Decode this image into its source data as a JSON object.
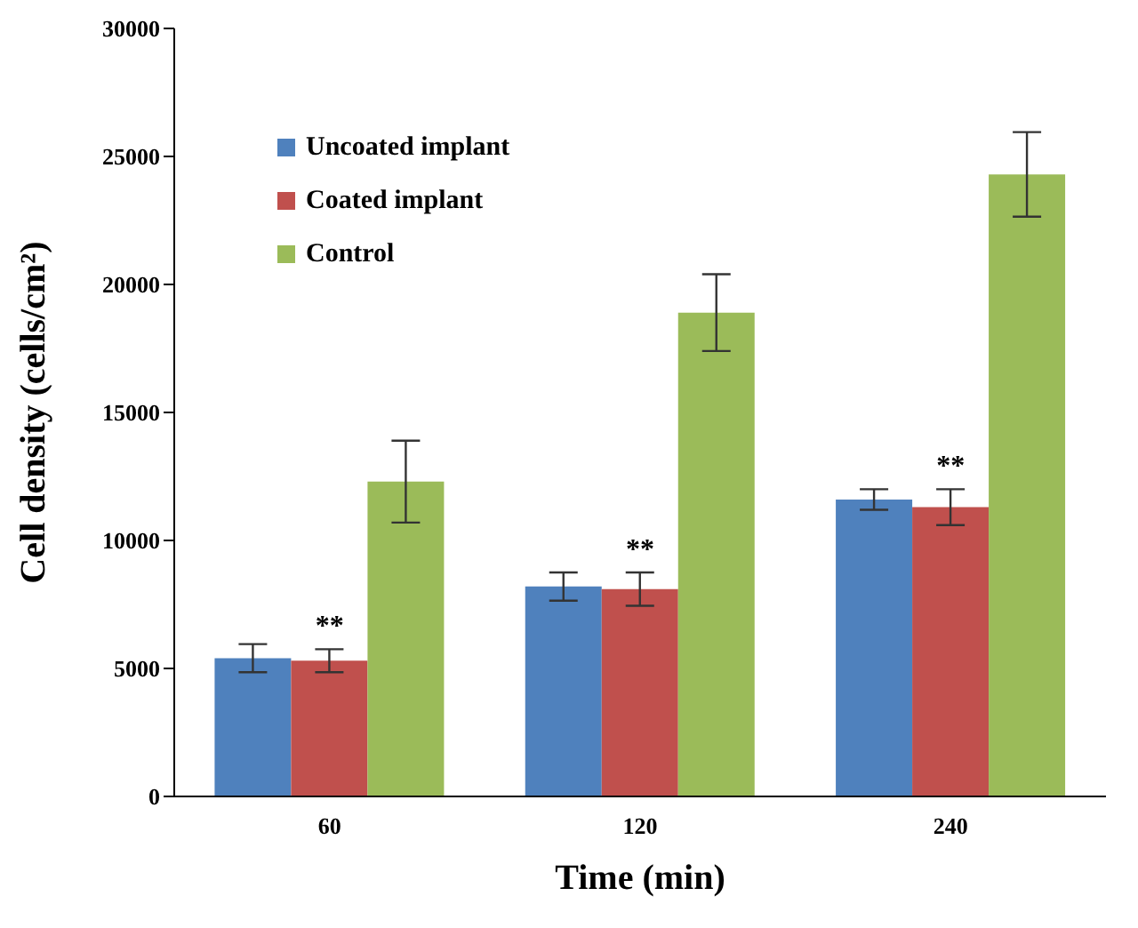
{
  "chart_data": {
    "type": "bar",
    "xlabel": "Time (min)",
    "ylabel": "Cell density (cells/cm²)",
    "categories": [
      "60",
      "120",
      "240"
    ],
    "series": [
      {
        "name": "Uncoated implant",
        "color": "#4f81bd",
        "values": [
          5400,
          8200,
          11600
        ],
        "errors": [
          550,
          550,
          400
        ]
      },
      {
        "name": "Coated implant",
        "color": "#c0504d",
        "values": [
          5300,
          8100,
          11300
        ],
        "errors": [
          450,
          650,
          700
        ]
      },
      {
        "name": "Control",
        "color": "#9bbb59",
        "values": [
          12300,
          18900,
          24300
        ],
        "errors": [
          1600,
          1500,
          1650
        ]
      }
    ],
    "ylim": [
      0,
      30000
    ],
    "yticks": [
      0,
      5000,
      10000,
      15000,
      20000,
      25000,
      30000
    ],
    "grid": false,
    "legend": "top left",
    "annotations": [
      "**",
      "**",
      "**"
    ]
  }
}
